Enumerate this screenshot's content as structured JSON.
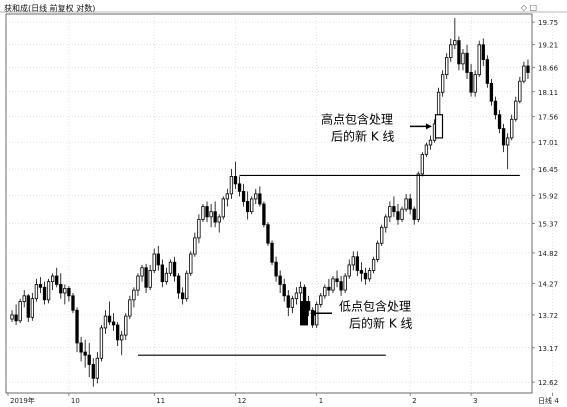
{
  "chart_title": "获和成(日线 前复权 对数)",
  "corner_icons": [
    "diamond-icon",
    "square-icon"
  ],
  "chart_data": {
    "type": "candlestick",
    "title": "获和成(日线 前复权 对数)",
    "ylim": [
      12.45,
      19.95
    ],
    "scale": "log",
    "grid": true,
    "y_ticks": [
      "19.75",
      "19.21",
      "18.66",
      "18.11",
      "17.56",
      "17.01",
      "16.45",
      "15.92",
      "15.37",
      "14.82",
      "14.27",
      "13.72",
      "13.17",
      "12.62"
    ],
    "x_ticks": [
      {
        "label": "2019年",
        "i": 0
      },
      {
        "label": "10",
        "i": 14
      },
      {
        "label": "11",
        "i": 35
      },
      {
        "label": "12",
        "i": 55
      },
      {
        "label": "1",
        "i": 75
      },
      {
        "label": "2",
        "i": 98
      },
      {
        "label": "3",
        "i": 113
      },
      {
        "label": "4",
        "i": 133
      }
    ],
    "x_unit_label": "日线",
    "candles": [
      [
        13.65,
        13.8,
        13.6,
        13.72
      ],
      [
        13.72,
        13.9,
        13.55,
        13.62
      ],
      [
        13.62,
        14.0,
        13.58,
        13.95
      ],
      [
        13.95,
        14.15,
        13.85,
        14.05
      ],
      [
        14.05,
        14.08,
        13.6,
        13.68
      ],
      [
        13.68,
        14.1,
        13.62,
        14.0
      ],
      [
        14.0,
        14.35,
        13.95,
        14.25
      ],
      [
        14.25,
        14.38,
        14.1,
        14.2
      ],
      [
        14.2,
        14.3,
        13.9,
        13.98
      ],
      [
        13.98,
        14.35,
        13.92,
        14.3
      ],
      [
        14.3,
        14.45,
        14.15,
        14.4
      ],
      [
        14.4,
        14.55,
        14.2,
        14.25
      ],
      [
        14.25,
        14.45,
        14.0,
        14.1
      ],
      [
        14.1,
        14.25,
        13.9,
        14.18
      ],
      [
        14.18,
        14.22,
        13.95,
        14.05
      ],
      [
        14.05,
        14.1,
        13.75,
        13.8
      ],
      [
        13.8,
        13.85,
        13.1,
        13.25
      ],
      [
        13.25,
        13.35,
        12.95,
        13.1
      ],
      [
        13.1,
        13.3,
        12.85,
        13.05
      ],
      [
        13.05,
        13.25,
        12.7,
        12.9
      ],
      [
        12.9,
        13.0,
        12.55,
        12.68
      ],
      [
        12.68,
        13.1,
        12.6,
        13.0
      ],
      [
        13.0,
        13.55,
        12.95,
        13.5
      ],
      [
        13.5,
        13.8,
        13.4,
        13.7
      ],
      [
        13.7,
        13.95,
        13.55,
        13.6
      ],
      [
        13.6,
        13.75,
        13.45,
        13.55
      ],
      [
        13.55,
        13.6,
        13.2,
        13.3
      ],
      [
        13.3,
        13.45,
        13.05,
        13.38
      ],
      [
        13.38,
        13.75,
        13.3,
        13.7
      ],
      [
        13.7,
        14.05,
        13.65,
        13.98
      ],
      [
        13.98,
        14.2,
        13.85,
        14.15
      ],
      [
        14.15,
        14.45,
        14.05,
        14.4
      ],
      [
        14.4,
        14.6,
        14.3,
        14.55
      ],
      [
        14.55,
        14.62,
        14.1,
        14.2
      ],
      [
        14.2,
        14.6,
        14.15,
        14.5
      ],
      [
        14.5,
        14.9,
        14.45,
        14.8
      ],
      [
        14.8,
        14.95,
        14.5,
        14.6
      ],
      [
        14.6,
        14.7,
        14.2,
        14.3
      ],
      [
        14.3,
        14.55,
        14.25,
        14.45
      ],
      [
        14.45,
        14.7,
        14.4,
        14.65
      ],
      [
        14.65,
        14.75,
        14.3,
        14.4
      ],
      [
        14.4,
        14.45,
        14.0,
        14.1
      ],
      [
        14.1,
        14.2,
        13.9,
        14.0
      ],
      [
        14.0,
        14.5,
        13.95,
        14.45
      ],
      [
        14.45,
        14.85,
        14.4,
        14.8
      ],
      [
        14.8,
        15.2,
        14.75,
        15.1
      ],
      [
        15.1,
        15.55,
        15.0,
        15.45
      ],
      [
        15.45,
        15.75,
        15.4,
        15.7
      ],
      [
        15.7,
        15.8,
        15.4,
        15.5
      ],
      [
        15.5,
        15.75,
        15.3,
        15.6
      ],
      [
        15.6,
        15.8,
        15.3,
        15.4
      ],
      [
        15.4,
        15.55,
        15.2,
        15.5
      ],
      [
        15.5,
        15.9,
        15.45,
        15.85
      ],
      [
        15.85,
        16.05,
        15.7,
        15.95
      ],
      [
        15.95,
        16.45,
        15.85,
        16.3
      ],
      [
        16.3,
        16.6,
        16.05,
        16.15
      ],
      [
        16.15,
        16.3,
        15.9,
        16.0
      ],
      [
        16.0,
        16.15,
        15.7,
        15.8
      ],
      [
        15.8,
        16.0,
        15.45,
        15.6
      ],
      [
        15.6,
        15.9,
        15.55,
        15.85
      ],
      [
        15.85,
        16.05,
        15.75,
        15.95
      ],
      [
        15.95,
        16.1,
        15.7,
        15.75
      ],
      [
        15.75,
        15.8,
        15.3,
        15.35
      ],
      [
        15.35,
        15.4,
        14.95,
        15.0
      ],
      [
        15.0,
        15.05,
        14.6,
        14.65
      ],
      [
        14.65,
        14.75,
        14.3,
        14.4
      ],
      [
        14.4,
        14.5,
        14.1,
        14.25
      ],
      [
        14.25,
        14.35,
        13.95,
        14.05
      ],
      [
        14.05,
        14.15,
        13.7,
        13.85
      ],
      [
        13.85,
        14.05,
        13.75,
        14.0
      ],
      [
        14.0,
        14.2,
        13.9,
        14.1
      ],
      [
        14.1,
        14.3,
        13.95,
        14.2
      ],
      [
        14.2,
        14.25,
        13.85,
        13.95
      ],
      [
        13.95,
        14.05,
        13.7,
        13.8
      ],
      [
        13.8,
        13.85,
        13.5,
        13.55
      ],
      [
        13.55,
        13.95,
        13.5,
        13.9
      ],
      [
        13.9,
        14.1,
        13.85,
        14.05
      ],
      [
        14.05,
        14.25,
        14.0,
        14.2
      ],
      [
        14.2,
        14.35,
        14.05,
        14.15
      ],
      [
        14.15,
        14.4,
        14.1,
        14.35
      ],
      [
        14.35,
        14.5,
        14.2,
        14.3
      ],
      [
        14.3,
        14.4,
        14.05,
        14.15
      ],
      [
        14.15,
        14.45,
        14.1,
        14.4
      ],
      [
        14.4,
        14.7,
        14.35,
        14.6
      ],
      [
        14.6,
        14.85,
        14.5,
        14.75
      ],
      [
        14.75,
        14.85,
        14.4,
        14.5
      ],
      [
        14.5,
        14.65,
        14.3,
        14.45
      ],
      [
        14.45,
        14.55,
        14.25,
        14.35
      ],
      [
        14.35,
        14.55,
        14.3,
        14.5
      ],
      [
        14.5,
        14.75,
        14.45,
        14.7
      ],
      [
        14.7,
        15.05,
        14.65,
        15.0
      ],
      [
        15.0,
        15.35,
        14.95,
        15.3
      ],
      [
        15.3,
        15.55,
        15.2,
        15.5
      ],
      [
        15.5,
        15.8,
        15.4,
        15.7
      ],
      [
        15.7,
        15.9,
        15.5,
        15.6
      ],
      [
        15.6,
        15.75,
        15.35,
        15.45
      ],
      [
        15.45,
        15.7,
        15.4,
        15.65
      ],
      [
        15.65,
        15.95,
        15.6,
        15.85
      ],
      [
        15.85,
        15.95,
        15.55,
        15.65
      ],
      [
        15.65,
        15.7,
        15.35,
        15.45
      ],
      [
        15.45,
        16.4,
        15.4,
        16.35
      ],
      [
        16.35,
        16.8,
        16.3,
        16.75
      ],
      [
        16.75,
        17.0,
        16.7,
        16.95
      ],
      [
        16.95,
        17.15,
        16.85,
        17.05
      ],
      [
        17.05,
        17.5,
        17.0,
        17.4
      ],
      [
        17.4,
        18.2,
        17.35,
        18.1
      ],
      [
        18.1,
        18.6,
        18.0,
        18.5
      ],
      [
        18.5,
        19.0,
        18.4,
        18.9
      ],
      [
        18.9,
        19.35,
        18.8,
        19.2
      ],
      [
        19.2,
        19.85,
        19.1,
        19.3
      ],
      [
        19.3,
        19.4,
        18.6,
        18.75
      ],
      [
        18.75,
        19.1,
        18.6,
        19.0
      ],
      [
        19.0,
        19.2,
        18.4,
        18.55
      ],
      [
        18.55,
        18.75,
        18.0,
        18.1
      ],
      [
        18.1,
        18.6,
        18.0,
        18.5
      ],
      [
        18.5,
        19.3,
        18.45,
        19.2
      ],
      [
        19.2,
        19.35,
        18.7,
        18.85
      ],
      [
        18.85,
        18.95,
        18.2,
        18.3
      ],
      [
        18.3,
        18.4,
        17.8,
        17.9
      ],
      [
        17.9,
        18.0,
        17.5,
        17.6
      ],
      [
        17.6,
        17.7,
        17.2,
        17.3
      ],
      [
        17.3,
        17.4,
        16.8,
        16.95
      ],
      [
        16.95,
        17.2,
        16.45,
        17.1
      ],
      [
        17.1,
        17.6,
        17.05,
        17.5
      ],
      [
        17.5,
        18.0,
        17.45,
        17.9
      ],
      [
        17.9,
        18.45,
        17.85,
        18.35
      ],
      [
        18.35,
        18.8,
        18.3,
        18.7
      ],
      [
        18.7,
        18.85,
        18.4,
        18.55
      ]
    ],
    "lines": [
      {
        "name": "top-line",
        "y": 16.32,
        "x_from": 56,
        "x_to": 125
      },
      {
        "name": "bottom-line",
        "y": 13.05,
        "x_from": 31,
        "x_to": 92
      }
    ],
    "annotations": [
      {
        "text": "高点包含处理",
        "name": "high-annotation-line1"
      },
      {
        "text": "后的新 K 线",
        "name": "high-annotation-line2"
      },
      {
        "text": "低点包含处理",
        "name": "low-annotation-line1"
      },
      {
        "text": "后的新 K 线",
        "name": "low-annotation-line2"
      }
    ],
    "special_candles": [
      {
        "name": "high-merged-candle",
        "open": 17.1,
        "close": 17.6,
        "style": "hollow"
      },
      {
        "name": "low-merged-candle",
        "open": 13.95,
        "close": 13.55,
        "style": "solid"
      }
    ]
  }
}
